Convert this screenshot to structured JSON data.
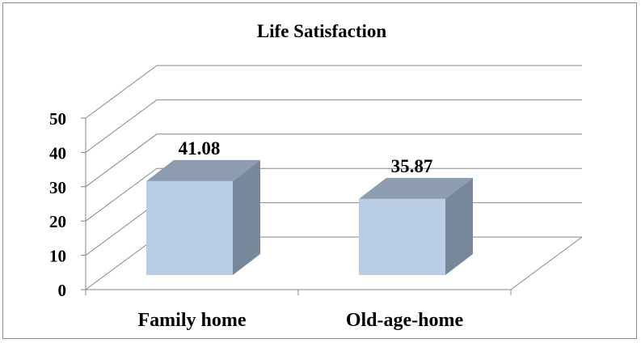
{
  "chart_data": {
    "type": "bar",
    "title": "Life Satisfaction",
    "categories": [
      "Family home",
      "Old-age-home"
    ],
    "series": [
      {
        "values": [
          41.08,
          35.87
        ]
      }
    ],
    "data_labels": [
      "41.08",
      "35.87"
    ],
    "ylim": [
      0,
      50
    ],
    "yticks": [
      "0",
      "10",
      "20",
      "30",
      "40",
      "50"
    ],
    "xlabel": "",
    "ylabel": "",
    "grid": true,
    "legend": "none",
    "style": "3d-column"
  },
  "colors": {
    "bar_front": "#b9cde5",
    "bar_top": "#8e9cb0",
    "bar_side": "#76889a",
    "gridline": "#868686",
    "frame": "#8c8c8c"
  }
}
